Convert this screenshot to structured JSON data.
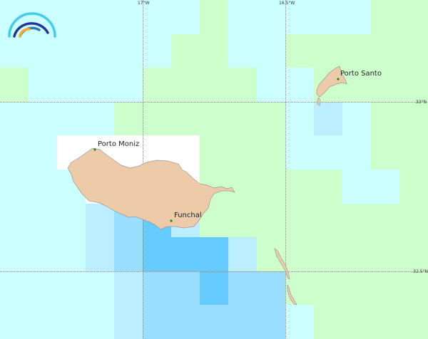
{
  "colors": {
    "C": "#ccffff",
    "G": "#ccffcc",
    "W": "#ffffff",
    "B1": "#bbeeff",
    "B2": "#99ddff",
    "B3": "#66ccff",
    "land": "#eecba8",
    "coast": "#999999",
    "city": "#228822",
    "logo_light": "#44ccee",
    "logo_dark": "#223399",
    "logo_mid": "#3377bb",
    "logo_orange": "#ffaa22"
  },
  "grid_cells": [
    [
      "C",
      "C",
      "C",
      "C",
      "C",
      "C",
      "C",
      "G",
      "C",
      "C",
      "C",
      "C",
      "C",
      "G",
      "G"
    ],
    [
      "C",
      "C",
      "C",
      "C",
      "C",
      "C",
      "G",
      "G",
      "C",
      "C",
      "G",
      "G",
      "G",
      "G",
      "G"
    ],
    [
      "G",
      "C",
      "C",
      "C",
      "C",
      "G",
      "G",
      "G",
      "G",
      "C",
      "C",
      "G",
      "G",
      "G",
      "G"
    ],
    [
      "C",
      "C",
      "C",
      "C",
      "G",
      "G",
      "G",
      "G",
      "G",
      "G",
      "C",
      "B1",
      "C",
      "G",
      "G"
    ],
    [
      "C",
      "C",
      "W",
      "W",
      "W",
      "W",
      "W",
      "G",
      "G",
      "G",
      "C",
      "C",
      "C",
      "G",
      "G"
    ],
    [
      "C",
      "C",
      "C",
      "W",
      "W",
      "W",
      "W",
      "G",
      "G",
      "G",
      "G",
      "G",
      "C",
      "C",
      "G"
    ],
    [
      "C",
      "C",
      "C",
      "B1",
      "B2",
      "B3",
      "B1",
      "G",
      "G",
      "G",
      "G",
      "G",
      "G",
      "G",
      "G"
    ],
    [
      "C",
      "C",
      "C",
      "B1",
      "B2",
      "B3",
      "B3",
      "B3",
      "B1",
      "G",
      "G",
      "G",
      "G",
      "G",
      "G"
    ],
    [
      "C",
      "C",
      "C",
      "C",
      "B1",
      "B2",
      "B2",
      "B3",
      "B2",
      "B2",
      "G",
      "G",
      "G",
      "G",
      "G"
    ],
    [
      "C",
      "C",
      "C",
      "C",
      "B1",
      "B2",
      "B2",
      "B2",
      "B2",
      "B2",
      "C",
      "G",
      "G",
      "G",
      "G"
    ]
  ],
  "axes": {
    "lon": [
      "17°W",
      "16.5°W"
    ],
    "lat": [
      "33°N",
      "32.5°N"
    ]
  },
  "places": {
    "porto_moniz": "Porto Moniz",
    "funchal": "Funchal",
    "porto_santo": "Porto Santo"
  },
  "logo": "weather-logo"
}
